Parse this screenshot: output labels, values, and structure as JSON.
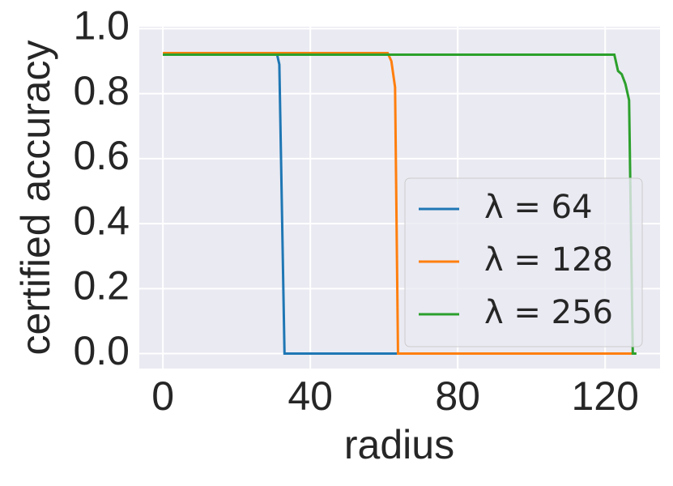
{
  "chart_data": {
    "type": "line",
    "xlabel": "radius",
    "ylabel": "certified accuracy",
    "xlim": [
      -6.4,
      134.9
    ],
    "ylim": [
      -0.046,
      1.006
    ],
    "xticks": [
      0,
      40,
      80,
      120
    ],
    "yticks": [
      {
        "value": 0,
        "label": "0.0"
      },
      {
        "value": 0.2,
        "label": "0.2"
      },
      {
        "value": 0.4,
        "label": "0.4"
      },
      {
        "value": 0.6,
        "label": "0.6"
      },
      {
        "value": 0.8,
        "label": "0.8"
      },
      {
        "value": 1,
        "label": "1.0"
      }
    ],
    "grid": true,
    "legend": "lower right",
    "series": [
      {
        "name": "λ = 64",
        "color": "#1f77b4",
        "x": [
          0,
          31,
          31.6,
          33,
          128
        ],
        "values": [
          0.92,
          0.92,
          0.89,
          0,
          0
        ]
      },
      {
        "name": "λ = 128",
        "color": "#ff7f0e",
        "x": [
          0,
          61,
          62,
          63,
          63.8,
          128
        ],
        "values": [
          0.925,
          0.925,
          0.9,
          0.82,
          0,
          0
        ]
      },
      {
        "name": "λ = 256",
        "color": "#2ca02c",
        "x": [
          0,
          122.5,
          123.5,
          124.5,
          125.5,
          126.5,
          127.5,
          128.5
        ],
        "values": [
          0.92,
          0.92,
          0.87,
          0.86,
          0.83,
          0.78,
          0,
          0
        ]
      }
    ]
  }
}
